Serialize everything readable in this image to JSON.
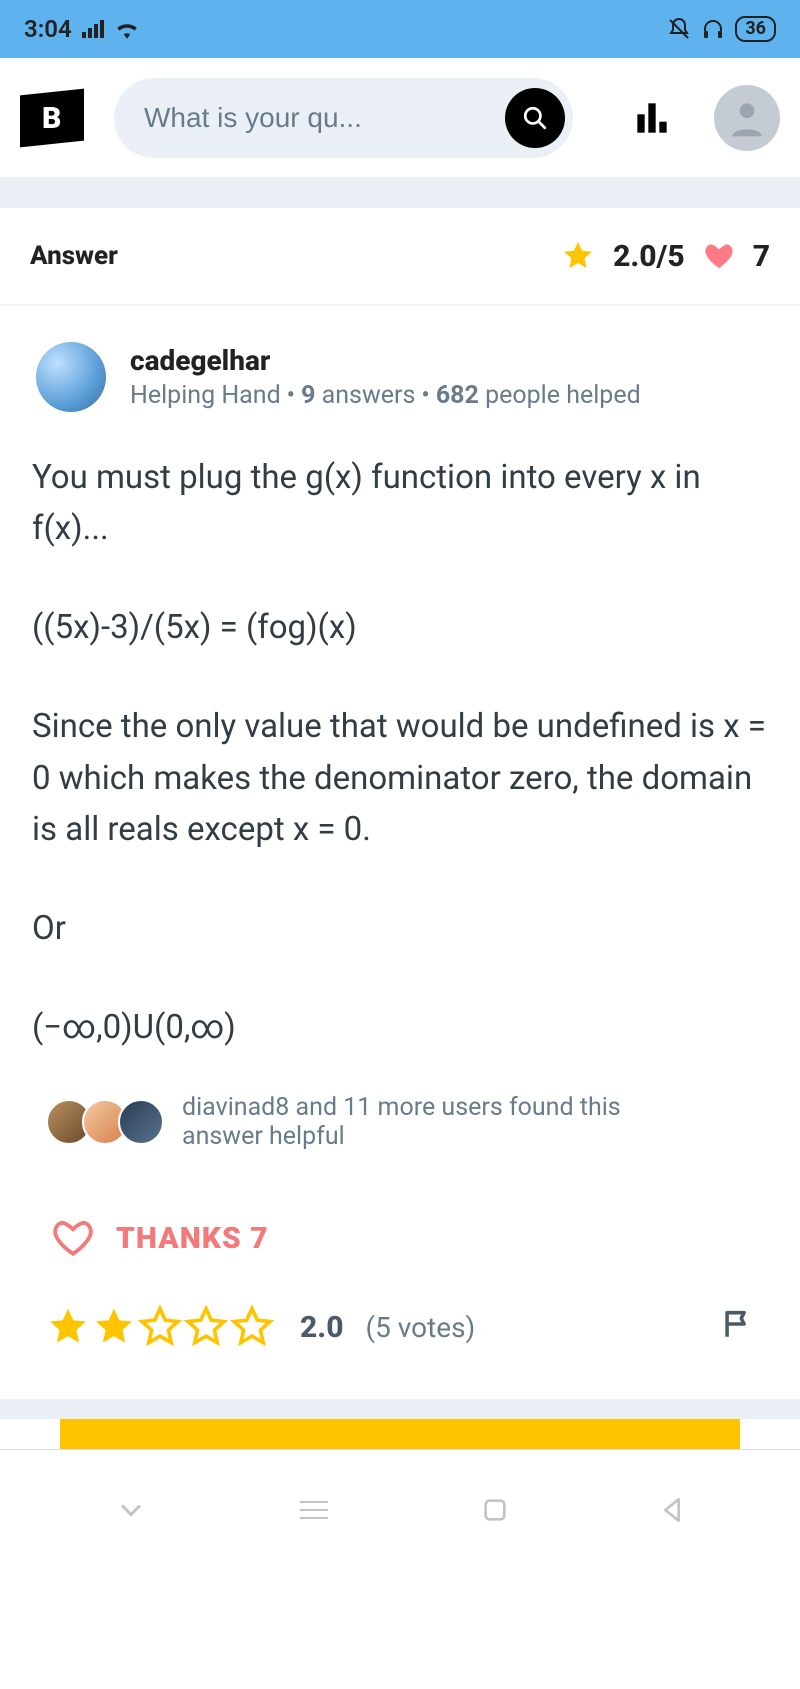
{
  "status": {
    "time": "3:04",
    "battery": "36"
  },
  "search": {
    "placeholder": "What is your qu..."
  },
  "answer_header": {
    "label": "Answer",
    "rating": "2.0/5",
    "thanks": "7"
  },
  "author": {
    "username": "cadegelhar",
    "rank": "Helping Hand",
    "answers_count": "9",
    "answers_word": "answers",
    "helped_count": "682",
    "helped_word": "people helped"
  },
  "answer_body": {
    "p1": "You must plug the g(x) function into every x in f(x)...",
    "p2": "((5x)-3)/(5x) = (fog)(x)",
    "p3": "Since the only value that would be undefined is x = 0 which makes the denominator zero, the domain is all reals except x = 0.",
    "p4": "Or",
    "p5": "(−∞,0)U(0,∞)"
  },
  "helpful": {
    "text": "diavinad8 and 11 more users found this answer helpful"
  },
  "thanks_button": "THANKS 7",
  "rating": {
    "score": "2.0",
    "votes": "(5 votes)",
    "filled_stars": 2,
    "total_stars": 5
  },
  "colors": {
    "status_bg": "#5eb3ee",
    "accent_star": "#ffc400",
    "heart": "#ff7a85",
    "thanks": "#f27a7a",
    "muted": "#687b8c"
  }
}
